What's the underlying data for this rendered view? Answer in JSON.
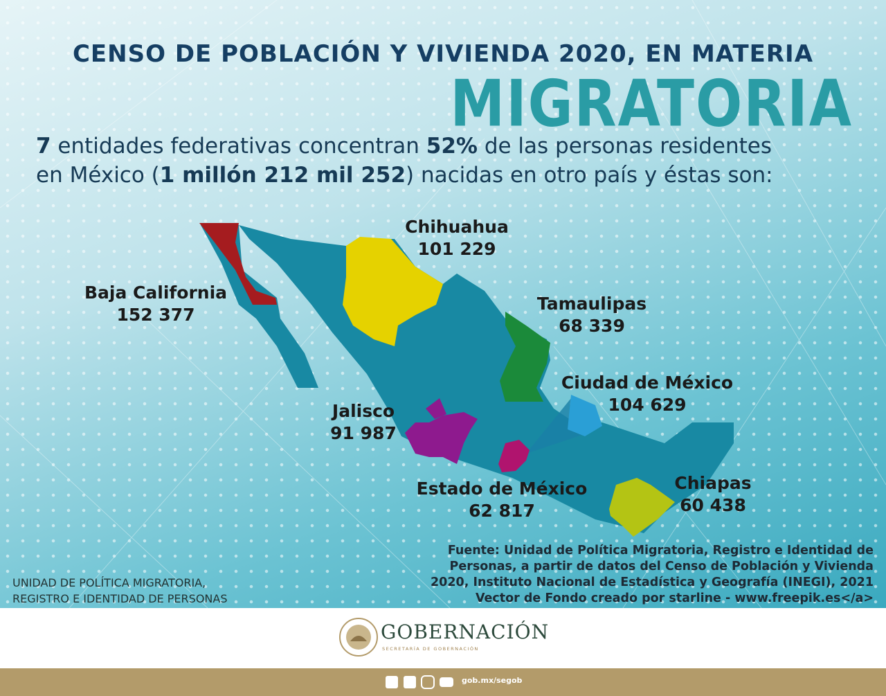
{
  "header": {
    "title": "CENSO DE POBLACIÓN Y VIVIENDA 2020, EN MATERIA",
    "subtitle": "MIGRATORIA"
  },
  "intro": [
    "7",
    " entidades federativas concentran ",
    "52%",
    " de las personas residentes en México (",
    "1 millón 212 mil 252",
    ") nacidas en otro país y éstas son:"
  ],
  "states": [
    {
      "name": "Baja California",
      "value": "152 377"
    },
    {
      "name": "Chihuahua",
      "value": "101 229"
    },
    {
      "name": "Tamaulipas",
      "value": "68 339"
    },
    {
      "name": "Ciudad de México",
      "value": "104 629"
    },
    {
      "name": "Jalisco",
      "value": "91 987"
    },
    {
      "name": "Estado de México",
      "value": "62 817"
    },
    {
      "name": "Chiapas",
      "value": "60 438"
    }
  ],
  "source": [
    "Fuente: Unidad de Política Migratoria, Registro e Identidad de",
    "Personas, a partir de datos del Censo de Población y Vivienda",
    "2020, Instituto Nacional de Estadística y Geografía (INEGI), 2021",
    "Vector de Fondo creado por starline - www.freepik.es</a>"
  ],
  "organization": [
    "UNIDAD DE POLÍTICA MIGRATORIA,",
    "REGISTRO E IDENTIDAD DE PERSONAS"
  ],
  "footer": {
    "brand": "GOBERNACIÓN",
    "tagline": "SECRETARÍA DE GOBERNACIÓN",
    "url": "gob.mx/segob"
  }
}
